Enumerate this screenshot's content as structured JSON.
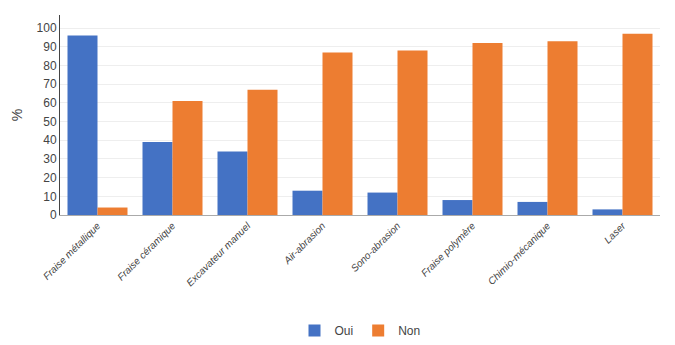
{
  "chart_data": {
    "type": "bar",
    "categories": [
      "Fraise métallique",
      "Fraise céramique",
      "Excavateur manuel",
      "Air-abrasion",
      "Sono-abrasion",
      "Fraise polymère",
      "Chimio-mécanique",
      "Laser"
    ],
    "series": [
      {
        "name": "Oui",
        "color": "#4472C4",
        "values": [
          96,
          39,
          34,
          13,
          12,
          8,
          7,
          3
        ]
      },
      {
        "name": "Non",
        "color": "#ED7D31",
        "values": [
          4,
          61,
          67,
          87,
          88,
          92,
          93,
          97
        ]
      }
    ],
    "ylabel": "%",
    "ylim": [
      0,
      107
    ],
    "yticks": [
      0,
      10,
      20,
      30,
      40,
      50,
      60,
      70,
      80,
      90,
      100
    ],
    "grid": true,
    "legend": "bottom"
  }
}
